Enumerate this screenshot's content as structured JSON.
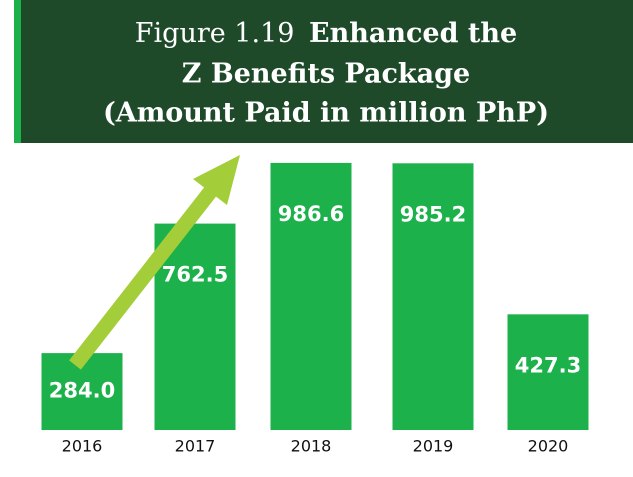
{
  "chart_data": {
    "type": "bar",
    "figure_label": "Figure 1.19",
    "title_lines": [
      "Enhanced the",
      "Z Benefits Package",
      "(Amount Paid in million PhP)"
    ],
    "categories": [
      "2016",
      "2017",
      "2018",
      "2019",
      "2020"
    ],
    "values": [
      284.0,
      762.5,
      986.6,
      985.2,
      427.3
    ],
    "value_labels": [
      "284.0",
      "762.5",
      "986.6",
      "985.2",
      "427.3"
    ],
    "color": "#1cb14b"
  }
}
